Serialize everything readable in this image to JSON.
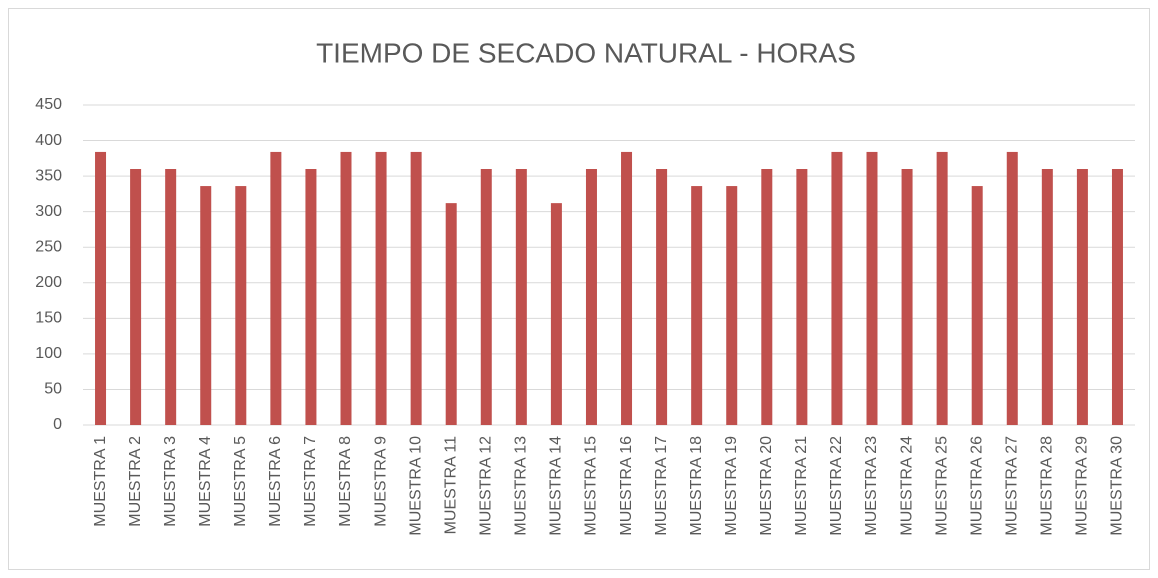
{
  "chart_data": {
    "type": "bar",
    "title": "TIEMPO DE SECADO NATURAL - HORAS",
    "categories": [
      "MUESTRA 1",
      "MUESTRA 2",
      "MUESTRA 3",
      "MUESTRA 4",
      "MUESTRA 5",
      "MUESTRA 6",
      "MUESTRA 7",
      "MUESTRA 8",
      "MUESTRA 9",
      "MUESTRA 10",
      "MUESTRA 11",
      "MUESTRA 12",
      "MUESTRA 13",
      "MUESTRA 14",
      "MUESTRA 15",
      "MUESTRA 16",
      "MUESTRA 17",
      "MUESTRA 18",
      "MUESTRA 19",
      "MUESTRA 20",
      "MUESTRA 21",
      "MUESTRA 22",
      "MUESTRA 23",
      "MUESTRA 24",
      "MUESTRA 25",
      "MUESTRA 26",
      "MUESTRA 27",
      "MUESTRA 28",
      "MUESTRA 29",
      "MUESTRA 30"
    ],
    "values": [
      384,
      360,
      360,
      336,
      336,
      384,
      360,
      384,
      384,
      384,
      312,
      360,
      360,
      312,
      360,
      384,
      360,
      336,
      336,
      360,
      360,
      384,
      384,
      360,
      384,
      336,
      384,
      360,
      360,
      360
    ],
    "color": "#c0504d",
    "ylim": [
      0,
      450
    ],
    "yticks": [
      0,
      50,
      100,
      150,
      200,
      250,
      300,
      350,
      400,
      450
    ],
    "grid": true
  }
}
